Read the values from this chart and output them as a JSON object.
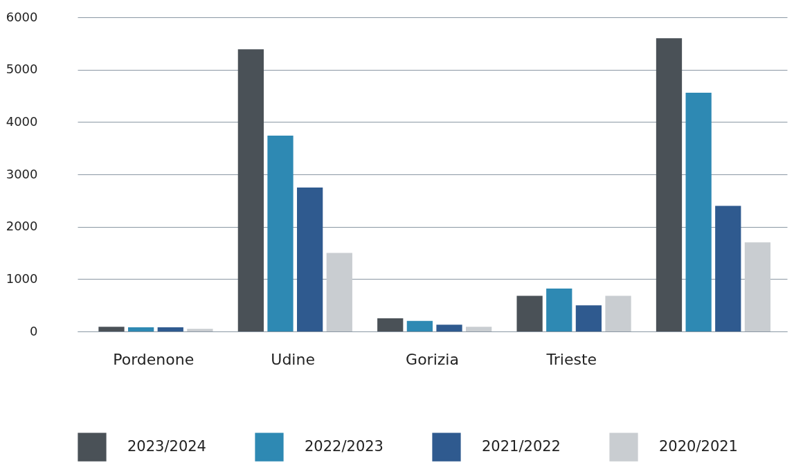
{
  "chart_data": {
    "type": "bar",
    "categories": [
      "Pordenone",
      "Udine",
      "Gorizia",
      "Trieste",
      null
    ],
    "series": [
      {
        "name": "2023/2024",
        "color": "#4a5157",
        "values": [
          90,
          5390,
          250,
          680,
          5600
        ]
      },
      {
        "name": "2022/2023",
        "color": "#2e89b3",
        "values": [
          80,
          3740,
          200,
          820,
          4560
        ]
      },
      {
        "name": "2021/2022",
        "color": "#2f5a8f",
        "values": [
          80,
          2750,
          130,
          500,
          2400
        ]
      },
      {
        "name": "2020/2021",
        "color": "#c9cdd1",
        "values": [
          50,
          1500,
          90,
          680,
          1700
        ]
      }
    ],
    "ylim": [
      0,
      6000
    ],
    "yticks": [
      0,
      1000,
      2000,
      3000,
      4000,
      5000,
      6000
    ],
    "grid": "y",
    "legend": "bottom"
  }
}
